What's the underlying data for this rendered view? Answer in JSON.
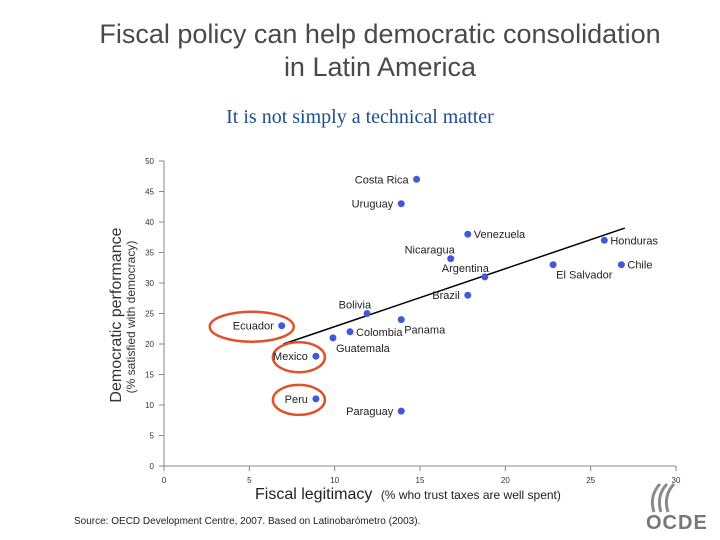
{
  "slide": {
    "title_line1": "Fiscal policy can help democratic consolidation",
    "title_line2": "in Latin America",
    "subtitle": "It is not simply a technical matter",
    "source": "Source: OECD Development Centre, 2007. Based on Latinobarómetro (2003).",
    "logo_text": "OCDE"
  },
  "chart_data": {
    "type": "scatter",
    "title": "",
    "xlabel": "Fiscal legitimacy",
    "xlabel_sub": "(% who trust taxes are well spent)",
    "ylabel": "Democratic performance",
    "ylabel_sub": "(% satisfied with democracy)",
    "xlim": [
      0,
      30
    ],
    "ylim": [
      0,
      50
    ],
    "xticks": [
      0,
      5,
      10,
      15,
      20,
      25,
      30
    ],
    "yticks": [
      0,
      5,
      10,
      15,
      20,
      25,
      30,
      35,
      40,
      45,
      50
    ],
    "grid": false,
    "points": [
      {
        "label": "Costa Rica",
        "x": 14.8,
        "y": 47,
        "label_pos": "left"
      },
      {
        "label": "Uruguay",
        "x": 13.9,
        "y": 43,
        "label_pos": "left"
      },
      {
        "label": "Venezuela",
        "x": 17.8,
        "y": 38,
        "label_pos": "right"
      },
      {
        "label": "Honduras",
        "x": 25.8,
        "y": 37,
        "label_pos": "right"
      },
      {
        "label": "Nicaragua",
        "x": 16.8,
        "y": 34,
        "label_pos": "above-left"
      },
      {
        "label": "Argentina",
        "x": 18.8,
        "y": 31,
        "label_pos": "above-left"
      },
      {
        "label": "Chile",
        "x": 26.8,
        "y": 33,
        "label_pos": "right"
      },
      {
        "label": "El Salvador",
        "x": 22.8,
        "y": 33,
        "label_pos": "below-right"
      },
      {
        "label": "Brazil",
        "x": 17.8,
        "y": 28,
        "label_pos": "left"
      },
      {
        "label": "Bolivia",
        "x": 11.9,
        "y": 25,
        "label_pos": "above-left"
      },
      {
        "label": "Panama",
        "x": 13.9,
        "y": 24,
        "label_pos": "below-right"
      },
      {
        "label": "Ecuador",
        "x": 6.9,
        "y": 23,
        "label_pos": "left"
      },
      {
        "label": "Colombia",
        "x": 10.9,
        "y": 22,
        "label_pos": "right"
      },
      {
        "label": "Guatemala",
        "x": 9.9,
        "y": 21,
        "label_pos": "below-right"
      },
      {
        "label": "Mexico",
        "x": 8.9,
        "y": 18,
        "label_pos": "left"
      },
      {
        "label": "Peru",
        "x": 8.9,
        "y": 11,
        "label_pos": "left"
      },
      {
        "label": "Paraguay",
        "x": 13.9,
        "y": 9,
        "label_pos": "left"
      }
    ],
    "trendline": {
      "x1": 7,
      "y1": 20,
      "x2": 27,
      "y2": 39
    },
    "highlighted": [
      "Ecuador",
      "Mexico",
      "Peru"
    ],
    "colors": {
      "point": "#3f5ad8",
      "highlight": "#e0522b",
      "trend": "#000000",
      "axis": "#888888"
    }
  }
}
